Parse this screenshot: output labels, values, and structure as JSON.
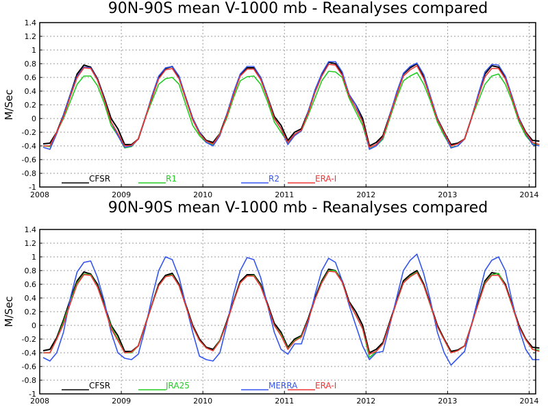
{
  "chart_data": [
    {
      "type": "line",
      "title": "90N-90S mean V-1000 mb - Reanalyses compared",
      "ylabel": "M/Sec",
      "ylim": [
        -1,
        1.4
      ],
      "yticks": [
        "-1",
        "-0.8",
        "-0.6",
        "-0.4",
        "-0.2",
        "0",
        "0.2",
        "0.4",
        "0.6",
        "0.8",
        "1",
        "1.2",
        "1.4"
      ],
      "xlim": [
        2008,
        2014.08
      ],
      "xticks": [
        "2008",
        "2009",
        "2010",
        "2011",
        "2012",
        "2013",
        "2014"
      ],
      "grid": true,
      "legend_position": "bottom-left",
      "series": [
        {
          "name": "CFSR",
          "color": "#000000",
          "values": [
            -0.37,
            -0.36,
            -0.2,
            0.05,
            0.35,
            0.65,
            0.78,
            0.75,
            0.58,
            0.3,
            0.0,
            -0.15,
            -0.38,
            -0.38,
            -0.3,
            0.0,
            0.3,
            0.6,
            0.73,
            0.76,
            0.6,
            0.3,
            0.0,
            -0.2,
            -0.32,
            -0.35,
            -0.22,
            0.05,
            0.35,
            0.64,
            0.74,
            0.74,
            0.6,
            0.32,
            0.03,
            -0.1,
            -0.32,
            -0.2,
            -0.15,
            0.1,
            0.4,
            0.65,
            0.82,
            0.8,
            0.65,
            0.35,
            0.2,
            0.0,
            -0.4,
            -0.35,
            -0.25,
            0.05,
            0.35,
            0.65,
            0.74,
            0.8,
            0.6,
            0.3,
            0.0,
            -0.2,
            -0.38,
            -0.36,
            -0.3,
            0.0,
            0.33,
            0.65,
            0.77,
            0.75,
            0.6,
            0.3,
            0.0,
            -0.2,
            -0.32,
            -0.33
          ]
        },
        {
          "name": "R1",
          "color": "#22cc22",
          "values": [
            -0.4,
            -0.41,
            -0.2,
            0.0,
            0.25,
            0.5,
            0.62,
            0.62,
            0.48,
            0.22,
            -0.1,
            -0.25,
            -0.43,
            -0.41,
            -0.3,
            0.0,
            0.25,
            0.5,
            0.58,
            0.6,
            0.5,
            0.2,
            -0.1,
            -0.25,
            -0.35,
            -0.38,
            -0.22,
            0.0,
            0.3,
            0.55,
            0.61,
            0.62,
            0.5,
            0.25,
            -0.05,
            -0.2,
            -0.35,
            -0.25,
            -0.18,
            0.05,
            0.3,
            0.55,
            0.69,
            0.68,
            0.6,
            0.3,
            0.1,
            -0.1,
            -0.44,
            -0.4,
            -0.3,
            0.0,
            0.3,
            0.55,
            0.62,
            0.67,
            0.5,
            0.25,
            -0.05,
            -0.25,
            -0.42,
            -0.4,
            -0.3,
            0.0,
            0.25,
            0.5,
            0.62,
            0.65,
            0.5,
            0.25,
            -0.05,
            -0.25,
            -0.37,
            -0.38
          ]
        },
        {
          "name": "R2",
          "color": "#3355ee",
          "values": [
            -0.42,
            -0.45,
            -0.22,
            0.05,
            0.35,
            0.62,
            0.75,
            0.74,
            0.57,
            0.28,
            -0.05,
            -0.25,
            -0.42,
            -0.4,
            -0.3,
            0.0,
            0.33,
            0.62,
            0.74,
            0.76,
            0.62,
            0.3,
            0.0,
            -0.2,
            -0.35,
            -0.4,
            -0.25,
            0.05,
            0.38,
            0.65,
            0.76,
            0.76,
            0.6,
            0.32,
            0.0,
            -0.15,
            -0.38,
            -0.25,
            -0.18,
            0.1,
            0.42,
            0.66,
            0.83,
            0.83,
            0.68,
            0.35,
            0.2,
            -0.05,
            -0.45,
            -0.4,
            -0.28,
            0.05,
            0.38,
            0.66,
            0.76,
            0.81,
            0.64,
            0.32,
            0.0,
            -0.22,
            -0.43,
            -0.4,
            -0.3,
            0.0,
            0.35,
            0.68,
            0.79,
            0.78,
            0.62,
            0.32,
            0.0,
            -0.22,
            -0.38,
            -0.4
          ]
        },
        {
          "name": "ERA-I",
          "color": "#ee3333",
          "values": [
            -0.4,
            -0.4,
            -0.2,
            0.02,
            0.32,
            0.6,
            0.74,
            0.73,
            0.56,
            0.27,
            -0.05,
            -0.22,
            -0.4,
            -0.39,
            -0.3,
            0.0,
            0.3,
            0.58,
            0.71,
            0.73,
            0.58,
            0.28,
            -0.02,
            -0.22,
            -0.33,
            -0.37,
            -0.23,
            0.03,
            0.34,
            0.62,
            0.72,
            0.72,
            0.57,
            0.3,
            0.0,
            -0.15,
            -0.35,
            -0.23,
            -0.17,
            0.08,
            0.38,
            0.62,
            0.79,
            0.78,
            0.63,
            0.33,
            0.15,
            -0.05,
            -0.42,
            -0.38,
            -0.27,
            0.03,
            0.34,
            0.62,
            0.71,
            0.77,
            0.58,
            0.29,
            -0.02,
            -0.21,
            -0.4,
            -0.37,
            -0.3,
            0.0,
            0.31,
            0.61,
            0.73,
            0.73,
            0.58,
            0.29,
            -0.02,
            -0.21,
            -0.35,
            -0.38
          ]
        }
      ]
    },
    {
      "type": "line",
      "title": "90N-90S mean V-1000 mb - Reanalyses compared",
      "ylabel": "M/Sec",
      "ylim": [
        -1,
        1.4
      ],
      "yticks": [
        "-1",
        "-0.8",
        "-0.6",
        "-0.4",
        "-0.2",
        "0",
        "0.2",
        "0.4",
        "0.6",
        "0.8",
        "1",
        "1.2",
        "1.4"
      ],
      "xlim": [
        2008,
        2014.08
      ],
      "xticks": [
        "2008",
        "2009",
        "2010",
        "2011",
        "2012",
        "2013",
        "2014"
      ],
      "grid": true,
      "legend_position": "bottom-left",
      "series": [
        {
          "name": "CFSR",
          "color": "#000000",
          "values": [
            -0.37,
            -0.35,
            -0.18,
            0.08,
            0.38,
            0.65,
            0.78,
            0.75,
            0.6,
            0.3,
            0.0,
            -0.15,
            -0.38,
            -0.38,
            -0.3,
            0.0,
            0.3,
            0.6,
            0.73,
            0.76,
            0.6,
            0.3,
            0.0,
            -0.2,
            -0.32,
            -0.35,
            -0.22,
            0.05,
            0.35,
            0.64,
            0.74,
            0.74,
            0.6,
            0.32,
            0.03,
            -0.1,
            -0.32,
            -0.2,
            -0.15,
            0.1,
            0.4,
            0.65,
            0.82,
            0.8,
            0.65,
            0.35,
            0.2,
            0.0,
            -0.4,
            -0.35,
            -0.25,
            0.05,
            0.35,
            0.65,
            0.74,
            0.8,
            0.6,
            0.3,
            0.0,
            -0.2,
            -0.38,
            -0.36,
            -0.3,
            0.0,
            0.33,
            0.65,
            0.77,
            0.75,
            0.6,
            0.3,
            0.0,
            -0.2,
            -0.32,
            -0.33
          ]
        },
        {
          "name": "JRA25",
          "color": "#22cc22",
          "values": [
            -0.4,
            -0.4,
            -0.2,
            0.05,
            0.35,
            0.62,
            0.75,
            0.74,
            0.57,
            0.28,
            -0.02,
            -0.2,
            -0.4,
            -0.4,
            -0.3,
            0.0,
            0.3,
            0.58,
            0.71,
            0.74,
            0.58,
            0.28,
            -0.02,
            -0.22,
            -0.33,
            -0.37,
            -0.22,
            0.03,
            0.34,
            0.62,
            0.72,
            0.73,
            0.58,
            0.3,
            0.0,
            -0.13,
            -0.34,
            -0.22,
            -0.16,
            0.08,
            0.38,
            0.63,
            0.8,
            0.8,
            0.63,
            0.33,
            0.15,
            -0.05,
            -0.47,
            -0.38,
            -0.27,
            0.03,
            0.34,
            0.62,
            0.72,
            0.78,
            0.58,
            0.28,
            -0.02,
            -0.21,
            -0.4,
            -0.37,
            -0.3,
            0.0,
            0.31,
            0.62,
            0.74,
            0.76,
            0.58,
            0.28,
            -0.02,
            -0.21,
            -0.35,
            -0.36
          ]
        },
        {
          "name": "MERRA",
          "color": "#3355ee",
          "values": [
            -0.47,
            -0.52,
            -0.4,
            -0.1,
            0.4,
            0.78,
            0.92,
            0.94,
            0.7,
            0.35,
            -0.1,
            -0.4,
            -0.48,
            -0.5,
            -0.42,
            -0.05,
            0.4,
            0.8,
            1.0,
            0.96,
            0.7,
            0.3,
            -0.1,
            -0.45,
            -0.5,
            -0.52,
            -0.4,
            0.0,
            0.45,
            0.8,
            0.99,
            0.96,
            0.7,
            0.3,
            -0.1,
            -0.35,
            -0.42,
            -0.27,
            -0.27,
            0.05,
            0.45,
            0.8,
            0.98,
            0.92,
            0.65,
            0.3,
            0.0,
            -0.3,
            -0.5,
            -0.4,
            -0.38,
            0.0,
            0.4,
            0.8,
            0.95,
            1.04,
            0.75,
            0.35,
            -0.1,
            -0.4,
            -0.58,
            -0.48,
            -0.38,
            0.0,
            0.4,
            0.8,
            0.95,
            1.0,
            0.8,
            0.35,
            -0.05,
            -0.35,
            -0.5,
            -0.5
          ]
        },
        {
          "name": "ERA-I",
          "color": "#ee3333",
          "values": [
            -0.4,
            -0.4,
            -0.2,
            0.02,
            0.32,
            0.6,
            0.74,
            0.73,
            0.56,
            0.27,
            -0.05,
            -0.22,
            -0.4,
            -0.39,
            -0.3,
            0.0,
            0.3,
            0.58,
            0.71,
            0.73,
            0.58,
            0.28,
            -0.02,
            -0.22,
            -0.33,
            -0.37,
            -0.23,
            0.03,
            0.34,
            0.62,
            0.72,
            0.72,
            0.57,
            0.3,
            0.0,
            -0.15,
            -0.35,
            -0.23,
            -0.17,
            0.08,
            0.38,
            0.62,
            0.79,
            0.78,
            0.63,
            0.33,
            0.15,
            -0.05,
            -0.42,
            -0.38,
            -0.27,
            0.03,
            0.34,
            0.62,
            0.71,
            0.77,
            0.58,
            0.29,
            -0.02,
            -0.21,
            -0.4,
            -0.37,
            -0.3,
            0.0,
            0.31,
            0.61,
            0.73,
            0.73,
            0.58,
            0.29,
            -0.02,
            -0.21,
            -0.35,
            -0.38
          ]
        }
      ]
    }
  ]
}
